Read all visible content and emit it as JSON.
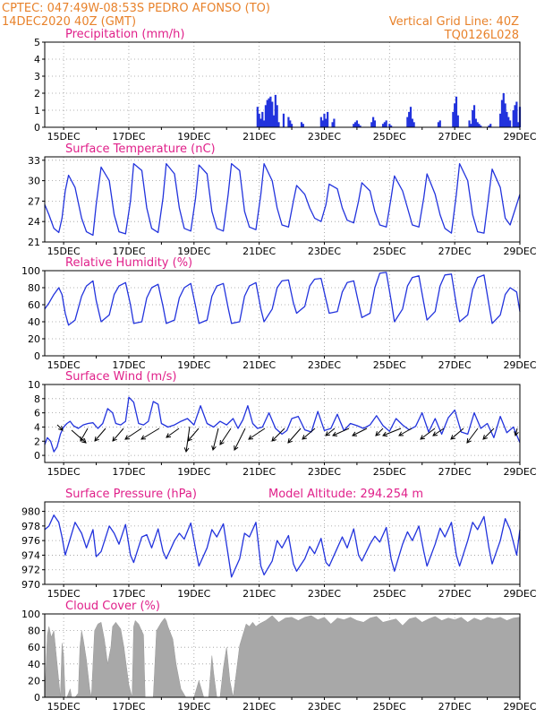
{
  "header": {
    "left_line1": "CPTEC:  047:49W-08:53S  PEDRO AFONSO (TO)",
    "left_line2": "14DEC2020 40Z (GMT)",
    "right_line1": "Vertical Grid Line: 40Z",
    "right_line2": "TQ0126L028"
  },
  "colors": {
    "header": "#e8822b",
    "title": "#e0208a",
    "series": "#2233dd",
    "cloud": "#a8a8a8"
  },
  "chart_data": [
    {
      "id": "precip",
      "type": "bar",
      "title": "Precipitation (mm/h)",
      "ylim": [
        0,
        5
      ],
      "yticks": [
        0,
        1,
        2,
        3,
        4,
        5
      ],
      "xlim": [
        14.42,
        29.0
      ],
      "xticks": [
        "15DEC",
        "17DEC",
        "19DEC",
        "21DEC",
        "23DEC",
        "25DEC",
        "27DEC",
        "29DEC"
      ],
      "x": [
        20.95,
        21.0,
        21.05,
        21.1,
        21.15,
        21.2,
        21.25,
        21.3,
        21.35,
        21.4,
        21.45,
        21.5,
        21.55,
        21.6,
        21.75,
        21.9,
        21.95,
        22.0,
        22.3,
        22.35,
        22.9,
        22.95,
        23.0,
        23.05,
        23.1,
        23.25,
        23.3,
        23.9,
        23.95,
        24.0,
        24.05,
        24.1,
        24.45,
        24.5,
        24.55,
        24.8,
        24.85,
        24.9,
        25.0,
        25.05,
        25.55,
        25.6,
        25.65,
        25.7,
        25.75,
        26.5,
        26.55,
        26.95,
        27.0,
        27.05,
        27.1,
        27.45,
        27.5,
        27.55,
        27.6,
        27.65,
        27.7,
        27.75,
        27.8,
        28.05,
        28.1,
        28.4,
        28.45,
        28.5,
        28.55,
        28.6,
        28.65,
        28.7,
        28.8,
        28.85,
        28.9,
        28.95,
        29.0
      ],
      "values": [
        1.2,
        0.8,
        0.5,
        0.9,
        0.4,
        1.3,
        1.6,
        1.7,
        1.8,
        1.5,
        0.7,
        1.9,
        1.3,
        0.3,
        0.8,
        0.6,
        0.4,
        0.2,
        0.3,
        0.2,
        0.6,
        0.4,
        0.8,
        0.5,
        0.9,
        0.3,
        0.5,
        0.2,
        0.3,
        0.4,
        0.2,
        0.1,
        0.3,
        0.6,
        0.4,
        0.2,
        0.3,
        0.4,
        0.2,
        0.1,
        0.6,
        0.9,
        1.2,
        0.5,
        0.3,
        0.3,
        0.4,
        0.9,
        1.4,
        1.8,
        0.7,
        0.4,
        0.2,
        1.0,
        1.3,
        0.5,
        0.3,
        0.2,
        0.1,
        0.1,
        0.2,
        0.8,
        1.6,
        2.0,
        1.4,
        0.9,
        0.6,
        0.4,
        1.0,
        1.3,
        1.5,
        0.3,
        1.2
      ]
    },
    {
      "id": "temp",
      "type": "line",
      "title": "Surface Temperature (nC)",
      "ylim": [
        21,
        33.5
      ],
      "yticks": [
        21,
        24,
        27,
        30,
        33
      ],
      "xlim": [
        14.42,
        29.0
      ],
      "xticks": [
        "15DEC",
        "17DEC",
        "19DEC",
        "21DEC",
        "23DEC",
        "25DEC",
        "27DEC",
        "29DEC"
      ],
      "x": [
        14.42,
        14.55,
        14.7,
        14.85,
        14.95,
        15.05,
        15.15,
        15.35,
        15.55,
        15.7,
        15.9,
        16.0,
        16.15,
        16.4,
        16.55,
        16.7,
        16.9,
        17.05,
        17.15,
        17.4,
        17.55,
        17.7,
        17.9,
        18.05,
        18.15,
        18.4,
        18.55,
        18.7,
        18.9,
        19.05,
        19.15,
        19.4,
        19.55,
        19.7,
        19.9,
        20.05,
        20.15,
        20.4,
        20.55,
        20.7,
        20.9,
        21.05,
        21.15,
        21.4,
        21.55,
        21.7,
        21.9,
        22.05,
        22.15,
        22.4,
        22.55,
        22.7,
        22.9,
        23.05,
        23.15,
        23.4,
        23.55,
        23.7,
        23.9,
        24.05,
        24.15,
        24.4,
        24.55,
        24.7,
        24.9,
        25.05,
        25.15,
        25.4,
        25.55,
        25.7,
        25.9,
        26.05,
        26.15,
        26.4,
        26.55,
        26.7,
        26.9,
        27.05,
        27.15,
        27.4,
        27.55,
        27.7,
        27.9,
        28.05,
        28.15,
        28.4,
        28.55,
        28.7,
        28.9,
        29.0
      ],
      "values": [
        26.5,
        25.0,
        23.0,
        22.4,
        24.5,
        28.5,
        30.8,
        29.0,
        24.5,
        22.5,
        22.0,
        26.5,
        32.0,
        30.0,
        25.0,
        22.5,
        22.2,
        27.0,
        32.5,
        31.5,
        26.0,
        23.0,
        22.4,
        27.5,
        32.5,
        31.0,
        26.0,
        23.0,
        22.6,
        27.5,
        32.3,
        31.0,
        25.5,
        23.0,
        22.6,
        28.0,
        32.5,
        31.5,
        25.5,
        23.2,
        22.8,
        28.0,
        32.5,
        30.0,
        26.0,
        23.5,
        23.2,
        27.0,
        29.3,
        28.0,
        26.0,
        24.5,
        24.0,
        26.5,
        29.5,
        28.8,
        26.0,
        24.2,
        23.8,
        27.0,
        29.7,
        28.5,
        25.5,
        23.5,
        23.2,
        27.5,
        30.7,
        28.5,
        26.0,
        23.5,
        23.2,
        27.5,
        31.0,
        28.0,
        25.0,
        23.0,
        22.3,
        28.0,
        32.5,
        30.0,
        25.0,
        22.5,
        22.3,
        28.0,
        31.7,
        29.0,
        24.5,
        23.5,
        26.5,
        28.0
      ]
    },
    {
      "id": "rh",
      "type": "line",
      "title": "Relative Humidity (%)",
      "ylim": [
        0,
        100
      ],
      "yticks": [
        0,
        20,
        40,
        60,
        80,
        100
      ],
      "xlim": [
        14.42,
        29.0
      ],
      "xticks": [
        "15DEC",
        "17DEC",
        "19DEC",
        "21DEC",
        "23DEC",
        "25DEC",
        "27DEC",
        "29DEC"
      ],
      "x": [
        14.42,
        14.55,
        14.7,
        14.85,
        14.95,
        15.05,
        15.15,
        15.35,
        15.55,
        15.7,
        15.9,
        16.0,
        16.15,
        16.4,
        16.55,
        16.7,
        16.9,
        17.05,
        17.15,
        17.4,
        17.55,
        17.7,
        17.9,
        18.05,
        18.15,
        18.4,
        18.55,
        18.7,
        18.9,
        19.05,
        19.15,
        19.4,
        19.55,
        19.7,
        19.9,
        20.05,
        20.15,
        20.4,
        20.55,
        20.7,
        20.9,
        21.05,
        21.15,
        21.4,
        21.55,
        21.7,
        21.9,
        22.05,
        22.15,
        22.4,
        22.55,
        22.7,
        22.9,
        23.05,
        23.15,
        23.4,
        23.55,
        23.7,
        23.9,
        24.05,
        24.15,
        24.4,
        24.55,
        24.7,
        24.9,
        25.05,
        25.15,
        25.4,
        25.55,
        25.7,
        25.9,
        26.05,
        26.15,
        26.4,
        26.55,
        26.7,
        26.9,
        27.05,
        27.15,
        27.4,
        27.55,
        27.7,
        27.9,
        28.05,
        28.15,
        28.4,
        28.55,
        28.7,
        28.9,
        29.0
      ],
      "values": [
        55,
        62,
        72,
        80,
        72,
        50,
        36,
        42,
        70,
        82,
        88,
        65,
        40,
        48,
        72,
        82,
        86,
        60,
        38,
        40,
        68,
        80,
        84,
        58,
        38,
        42,
        68,
        80,
        85,
        58,
        38,
        42,
        70,
        82,
        85,
        56,
        38,
        40,
        70,
        82,
        86,
        55,
        40,
        55,
        80,
        88,
        89,
        62,
        50,
        58,
        82,
        90,
        91,
        66,
        50,
        52,
        75,
        86,
        88,
        62,
        45,
        50,
        80,
        97,
        98,
        65,
        40,
        55,
        82,
        92,
        94,
        62,
        42,
        52,
        82,
        95,
        96,
        60,
        40,
        48,
        78,
        92,
        95,
        60,
        38,
        48,
        72,
        80,
        75,
        52
      ]
    },
    {
      "id": "wind",
      "type": "line",
      "title": "Surface Wind (m/s)",
      "ylim": [
        -1,
        10
      ],
      "yticks": [
        0,
        2,
        4,
        6,
        8,
        10
      ],
      "xlim": [
        14.42,
        29.0
      ],
      "xticks": [
        "15DEC",
        "17DEC",
        "19DEC",
        "21DEC",
        "23DEC",
        "25DEC",
        "27DEC",
        "29DEC"
      ],
      "x": [
        14.42,
        14.5,
        14.6,
        14.7,
        14.8,
        14.9,
        15.0,
        15.1,
        15.2,
        15.3,
        15.45,
        15.6,
        15.75,
        15.9,
        16.05,
        16.2,
        16.35,
        16.5,
        16.6,
        16.75,
        16.9,
        17.0,
        17.15,
        17.3,
        17.45,
        17.6,
        17.75,
        17.9,
        18.0,
        18.2,
        18.4,
        18.6,
        18.8,
        19.0,
        19.2,
        19.4,
        19.6,
        19.8,
        20.0,
        20.2,
        20.35,
        20.5,
        20.65,
        20.8,
        20.95,
        21.1,
        21.3,
        21.5,
        21.7,
        21.85,
        22.0,
        22.2,
        22.4,
        22.6,
        22.8,
        23.0,
        23.2,
        23.4,
        23.6,
        23.8,
        24.0,
        24.2,
        24.4,
        24.6,
        24.8,
        25.0,
        25.2,
        25.4,
        25.6,
        25.8,
        26.0,
        26.2,
        26.4,
        26.6,
        26.8,
        27.0,
        27.2,
        27.4,
        27.6,
        27.8,
        28.0,
        28.2,
        28.4,
        28.6,
        28.8,
        29.0
      ],
      "values": [
        1.5,
        2.5,
        2.0,
        0.5,
        1.2,
        3.0,
        4.0,
        4.5,
        4.8,
        4.2,
        3.8,
        4.3,
        4.5,
        4.6,
        3.8,
        4.5,
        6.6,
        6.0,
        4.5,
        4.3,
        4.8,
        8.2,
        7.5,
        4.5,
        4.3,
        4.8,
        7.6,
        7.2,
        4.5,
        4.0,
        4.3,
        4.8,
        5.2,
        4.3,
        7.0,
        4.5,
        4.0,
        4.8,
        4.3,
        5.2,
        3.8,
        5.0,
        7.0,
        4.5,
        3.8,
        4.0,
        6.0,
        3.8,
        3.0,
        3.5,
        5.2,
        5.5,
        3.6,
        3.3,
        6.2,
        3.5,
        3.8,
        5.8,
        3.5,
        4.5,
        4.2,
        3.8,
        4.3,
        5.6,
        4.2,
        3.4,
        5.2,
        4.3,
        3.6,
        4.1,
        6.0,
        3.3,
        5.2,
        3.0,
        5.3,
        6.4,
        3.3,
        3.0,
        6.0,
        3.8,
        4.5,
        2.5,
        5.5,
        3.2,
        4.0,
        1.8
      ]
    },
    {
      "id": "pressure",
      "type": "line",
      "title": "Surface Pressure (hPa)",
      "subtitle": "Model Altitude: 294.254 m",
      "ylim": [
        970,
        981.3
      ],
      "yticks": [
        970,
        972,
        974,
        976,
        978,
        980
      ],
      "xlim": [
        14.42,
        29.0
      ],
      "xticks": [
        "15DEC",
        "17DEC",
        "19DEC",
        "21DEC",
        "23DEC",
        "25DEC",
        "27DEC",
        "29DEC"
      ],
      "x": [
        14.42,
        14.55,
        14.7,
        14.85,
        14.95,
        15.05,
        15.15,
        15.35,
        15.55,
        15.7,
        15.9,
        16.0,
        16.15,
        16.4,
        16.55,
        16.7,
        16.9,
        17.05,
        17.15,
        17.4,
        17.55,
        17.7,
        17.9,
        18.05,
        18.15,
        18.4,
        18.55,
        18.7,
        18.9,
        19.05,
        19.15,
        19.4,
        19.55,
        19.7,
        19.9,
        20.05,
        20.15,
        20.4,
        20.55,
        20.7,
        20.9,
        21.05,
        21.15,
        21.4,
        21.55,
        21.7,
        21.9,
        22.05,
        22.15,
        22.4,
        22.55,
        22.7,
        22.9,
        23.05,
        23.15,
        23.4,
        23.55,
        23.7,
        23.9,
        24.05,
        24.15,
        24.4,
        24.55,
        24.7,
        24.9,
        25.05,
        25.15,
        25.4,
        25.55,
        25.7,
        25.9,
        26.05,
        26.15,
        26.4,
        26.55,
        26.7,
        26.9,
        27.05,
        27.15,
        27.4,
        27.55,
        27.7,
        27.9,
        28.05,
        28.15,
        28.4,
        28.55,
        28.7,
        28.9,
        29.0
      ],
      "values": [
        977.5,
        978.0,
        979.5,
        978.5,
        976.5,
        974.0,
        975.5,
        978.5,
        977.0,
        975.0,
        977.5,
        973.8,
        974.5,
        978.0,
        977.0,
        975.5,
        978.2,
        974.0,
        973.0,
        976.5,
        976.8,
        975.0,
        977.6,
        974.5,
        973.5,
        976.0,
        977.0,
        976.2,
        978.4,
        974.8,
        972.5,
        975.0,
        977.5,
        976.5,
        978.3,
        974.0,
        971.0,
        973.5,
        977.0,
        976.5,
        978.5,
        972.5,
        971.3,
        973.2,
        976.0,
        975.0,
        976.7,
        972.8,
        971.8,
        973.5,
        975.2,
        974.2,
        976.3,
        973.0,
        972.5,
        975.0,
        976.5,
        975.0,
        977.6,
        974.0,
        973.2,
        975.5,
        976.6,
        975.8,
        977.8,
        973.5,
        971.8,
        975.5,
        977.2,
        976.0,
        978.0,
        974.5,
        972.5,
        975.5,
        977.7,
        976.5,
        978.5,
        974.0,
        972.5,
        976.0,
        978.5,
        977.5,
        979.3,
        975.0,
        972.8,
        976.0,
        979.0,
        977.5,
        974.0,
        977.5
      ]
    },
    {
      "id": "cloud",
      "type": "area",
      "title": "Cloud Cover (%)",
      "ylim": [
        0,
        100
      ],
      "yticks": [
        0,
        20,
        40,
        60,
        80,
        100
      ],
      "xlim": [
        14.42,
        29.0
      ],
      "xticks": [
        "15DEC",
        "17DEC",
        "19DEC",
        "21DEC",
        "23DEC",
        "25DEC",
        "27DEC",
        "29DEC"
      ],
      "x": [
        14.42,
        14.5,
        14.55,
        14.62,
        14.7,
        14.75,
        14.85,
        14.9,
        14.95,
        15.0,
        15.05,
        15.1,
        15.2,
        15.25,
        15.35,
        15.45,
        15.5,
        15.55,
        15.6,
        15.7,
        15.8,
        15.85,
        15.95,
        16.05,
        16.15,
        16.25,
        16.35,
        16.45,
        16.5,
        16.6,
        16.75,
        16.85,
        17.0,
        17.1,
        17.15,
        17.2,
        17.3,
        17.45,
        17.5,
        17.6,
        17.75,
        17.85,
        18.0,
        18.1,
        18.15,
        18.2,
        18.35,
        18.45,
        18.6,
        18.75,
        18.85,
        19.0,
        19.15,
        19.3,
        19.45,
        19.55,
        19.6,
        19.7,
        19.8,
        19.9,
        20.0,
        20.1,
        20.2,
        20.3,
        20.4,
        20.5,
        20.6,
        20.7,
        20.8,
        20.9,
        21.0,
        21.2,
        21.4,
        21.6,
        21.8,
        22.0,
        22.2,
        22.4,
        22.6,
        22.8,
        23.0,
        23.2,
        23.4,
        23.6,
        23.8,
        24.0,
        24.2,
        24.4,
        24.6,
        24.8,
        25.0,
        25.2,
        25.4,
        25.6,
        25.8,
        26.0,
        26.2,
        26.4,
        26.6,
        26.8,
        27.0,
        27.2,
        27.4,
        27.6,
        27.8,
        28.0,
        28.2,
        28.4,
        28.6,
        28.8,
        29.0
      ],
      "values": [
        0,
        75,
        85,
        72,
        80,
        60,
        20,
        0,
        65,
        50,
        0,
        0,
        10,
        0,
        0,
        5,
        60,
        80,
        70,
        45,
        10,
        0,
        80,
        88,
        90,
        70,
        40,
        60,
        85,
        90,
        82,
        60,
        15,
        0,
        85,
        92,
        88,
        75,
        0,
        0,
        0,
        80,
        90,
        95,
        92,
        85,
        70,
        40,
        10,
        0,
        0,
        0,
        20,
        0,
        0,
        50,
        30,
        0,
        0,
        35,
        60,
        20,
        0,
        30,
        62,
        75,
        88,
        85,
        90,
        85,
        88,
        92,
        98,
        90,
        95,
        96,
        92,
        96,
        98,
        93,
        96,
        88,
        95,
        93,
        96,
        92,
        90,
        95,
        97,
        90,
        92,
        94,
        86,
        94,
        96,
        90,
        94,
        97,
        92,
        95,
        93,
        96,
        90,
        95,
        92,
        96,
        94,
        96,
        92,
        95,
        96
      ]
    }
  ]
}
